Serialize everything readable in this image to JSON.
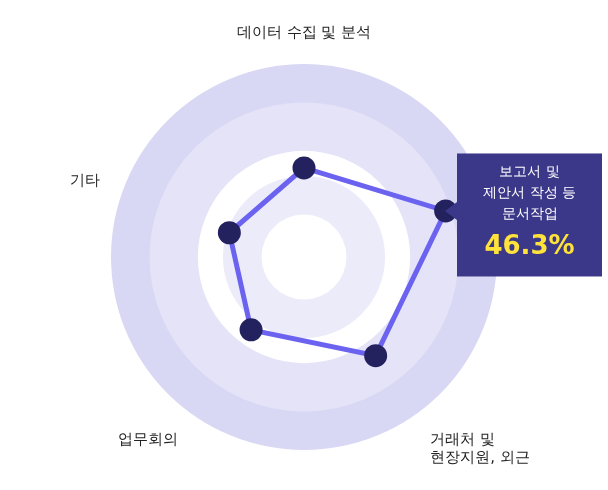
{
  "chart_data": {
    "type": "radar",
    "categories": [
      "데이터 수집 및 분석",
      "보고서 및\n제안서 작성 등\n문서작업",
      "거래처 및\n현장지원, 외근",
      "업무회의",
      "기타"
    ],
    "values": [
      27.7,
      46.3,
      37.9,
      28,
      24.4
    ],
    "value_labels": [
      null,
      "46.3%",
      null,
      null,
      null
    ],
    "color": "#6b63f0",
    "marker": "circle",
    "ylim": [
      0,
      60
    ],
    "yticks": [
      0,
      15,
      30,
      45,
      60
    ],
    "grid": true,
    "tick_labels": false
  }
}
